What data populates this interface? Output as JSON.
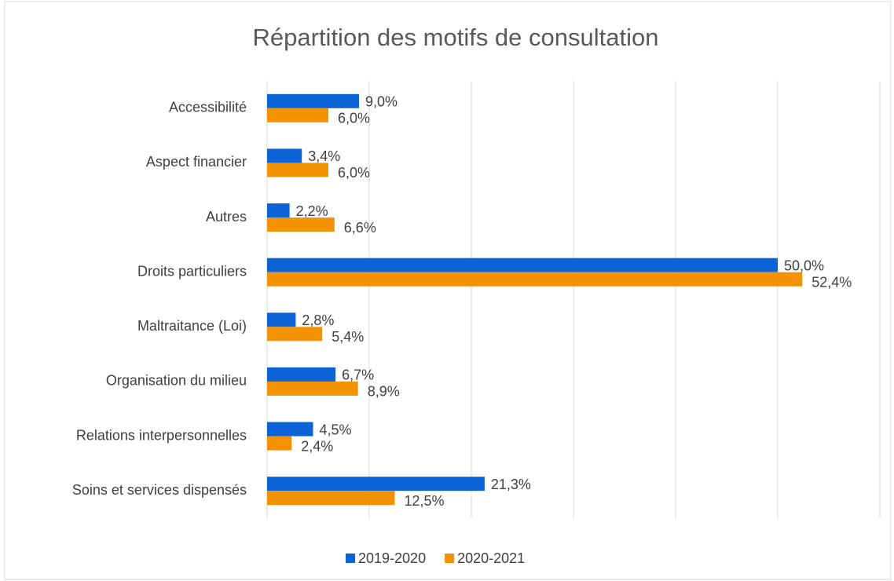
{
  "chart_data": {
    "type": "bar",
    "orientation": "horizontal",
    "title": "Répartition des motifs de consultation",
    "categories": [
      "Accessibilité",
      "Aspect financier",
      "Autres",
      "Droits particuliers",
      "Maltraitance (Loi)",
      "Organisation du milieu",
      "Relations interpersonnelles",
      "Soins et services dispensés"
    ],
    "series": [
      {
        "name": "2019-2020",
        "color": "#0b63d6",
        "values": [
          9.0,
          3.4,
          2.2,
          50.0,
          2.8,
          6.7,
          4.5,
          21.3
        ],
        "value_labels": [
          "9,0%",
          "3,4%",
          "2,2%",
          "50,0%",
          "2,8%",
          "6,7%",
          "4,5%",
          "21,3%"
        ]
      },
      {
        "name": "2020-2021",
        "color": "#f39304",
        "values": [
          6.0,
          6.0,
          6.6,
          52.4,
          5.4,
          8.9,
          2.4,
          12.5
        ],
        "value_labels": [
          "6,0%",
          "6,0%",
          "6,6%",
          "52,4%",
          "5,4%",
          "8,9%",
          "2,4%",
          "12,5%"
        ]
      }
    ],
    "xlim": [
      0,
      60
    ],
    "xticks": [
      0,
      10,
      20,
      30,
      40,
      50,
      60
    ],
    "grid": true,
    "legend": "bottom"
  }
}
